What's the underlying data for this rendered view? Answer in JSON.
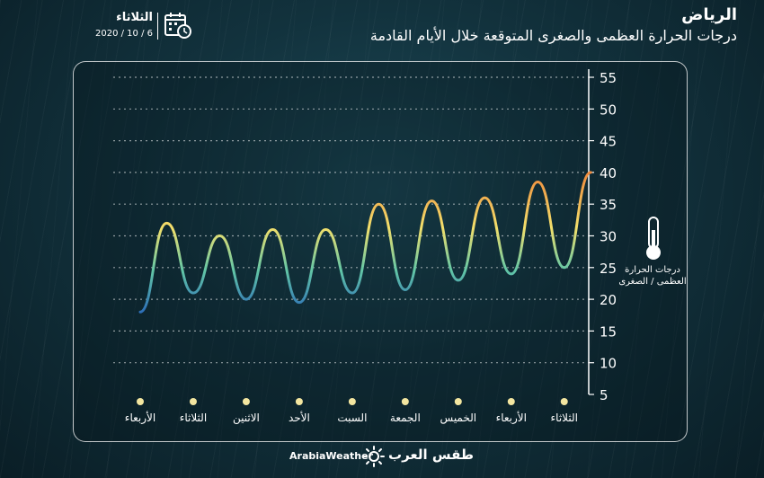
{
  "header": {
    "city": "الرياض",
    "subtitle": "درجات الحرارة العظمى والصغرى المتوقعة خلال الأيام القادمة",
    "day_name": "الثلاثاء",
    "date": "2020 / 10 / 6"
  },
  "legend": {
    "thermometer_label_line1": "درجات الحرارة",
    "thermometer_label_line2": "العظمى / الصغرى"
  },
  "branding": {
    "english": "ArabiaWeather",
    "arabic": "طقس العرب"
  },
  "colors": {
    "cold": "#2d6fb8",
    "mild": "#63c7a6",
    "warm": "#f2e06c",
    "hot": "#f08a3c",
    "dot": "#f3e6a0"
  },
  "chart_data": {
    "type": "line",
    "title": "درجات الحرارة العظمى والصغرى المتوقعة خلال الأيام القادمة",
    "categories": [
      "الأربعاء",
      "الثلاثاء",
      "الاثنين",
      "الأحد",
      "السبت",
      "الجمعة",
      "الخميس",
      "الأربعاء",
      "الثلاثاء"
    ],
    "yticks": [
      5,
      10,
      15,
      20,
      25,
      30,
      35,
      40,
      45,
      50,
      55
    ],
    "ylim": [
      5,
      55
    ],
    "series": [
      {
        "x": [
          0,
          0.5,
          1,
          1.5,
          2,
          2.5,
          3,
          3.5,
          4,
          4.5,
          5,
          5.5,
          6,
          6.5,
          7,
          7.5,
          8,
          8.5
        ],
        "values": [
          18,
          32,
          21,
          30,
          20,
          31,
          19.5,
          31,
          21,
          35,
          21.5,
          35.5,
          23,
          36,
          24,
          38.5,
          25,
          40
        ]
      }
    ],
    "grid": true,
    "y_axis_side": "right",
    "legend": "right"
  }
}
